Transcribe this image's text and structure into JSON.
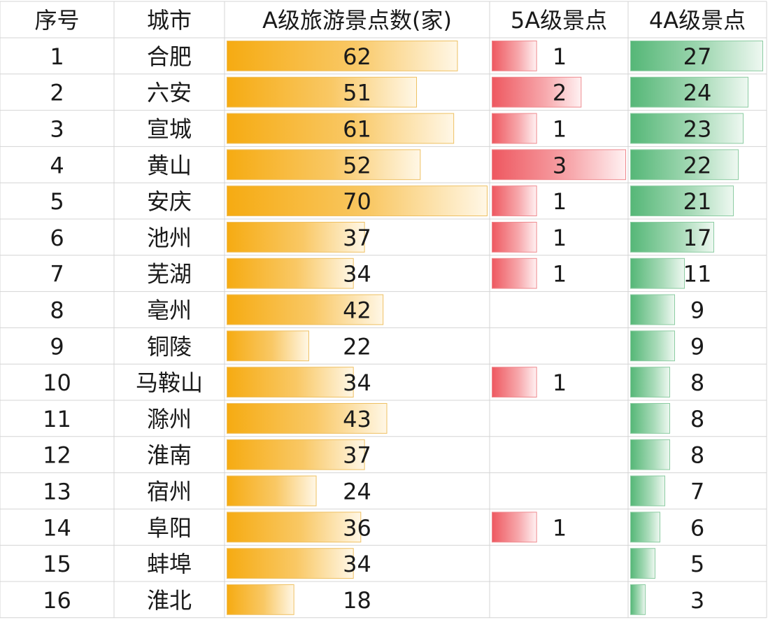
{
  "chart_data": {
    "type": "table",
    "columns": [
      "序号",
      "城市",
      "A级旅游景点数(家)",
      "5A级景点",
      "4A级景点"
    ],
    "rows": [
      {
        "rank": "1",
        "city": "合肥",
        "total": 62,
        "a5": 1,
        "a4": 27
      },
      {
        "rank": "2",
        "city": "六安",
        "total": 51,
        "a5": 2,
        "a4": 24
      },
      {
        "rank": "3",
        "city": "宣城",
        "total": 61,
        "a5": 1,
        "a4": 23
      },
      {
        "rank": "4",
        "city": "黄山",
        "total": 52,
        "a5": 3,
        "a4": 22
      },
      {
        "rank": "5",
        "city": "安庆",
        "total": 70,
        "a5": 1,
        "a4": 21
      },
      {
        "rank": "6",
        "city": "池州",
        "total": 37,
        "a5": 1,
        "a4": 17
      },
      {
        "rank": "7",
        "city": "芜湖",
        "total": 34,
        "a5": 1,
        "a4": 11
      },
      {
        "rank": "8",
        "city": "亳州",
        "total": 42,
        "a5": null,
        "a4": 9
      },
      {
        "rank": "9",
        "city": "铜陵",
        "total": 22,
        "a5": null,
        "a4": 9
      },
      {
        "rank": "10",
        "city": "马鞍山",
        "total": 34,
        "a5": 1,
        "a4": 8
      },
      {
        "rank": "11",
        "city": "滁州",
        "total": 43,
        "a5": null,
        "a4": 8
      },
      {
        "rank": "12",
        "city": "淮南",
        "total": 37,
        "a5": null,
        "a4": 8
      },
      {
        "rank": "13",
        "city": "宿州",
        "total": 24,
        "a5": null,
        "a4": 7
      },
      {
        "rank": "14",
        "city": "阜阳",
        "total": 36,
        "a5": 1,
        "a4": 6
      },
      {
        "rank": "15",
        "city": "蚌埠",
        "total": 34,
        "a5": null,
        "a4": 5
      },
      {
        "rank": "16",
        "city": "淮北",
        "total": 18,
        "a5": null,
        "a4": 3
      }
    ],
    "data_bar_max": {
      "total": 70,
      "a5": 3,
      "a4": 27
    },
    "colors": {
      "total_bar": "#f6ae1a",
      "a5_bar": "#ef5b63",
      "a4_bar": "#5dbb7c",
      "grid": "#d4d4d4",
      "text": "#1a1a1a"
    }
  }
}
